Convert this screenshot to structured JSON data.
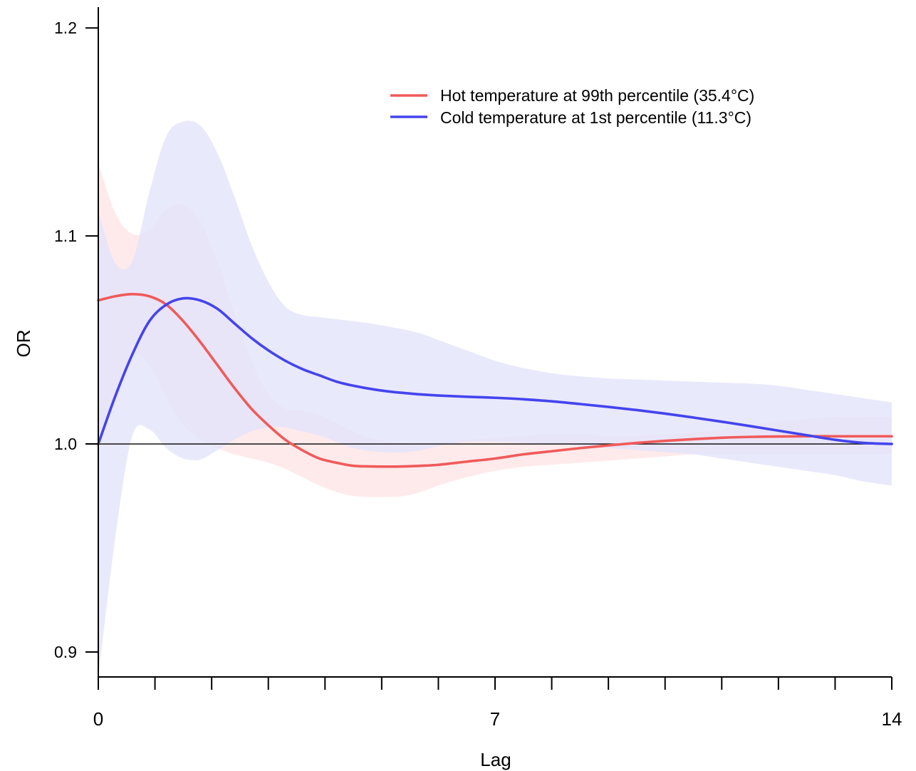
{
  "chart_data": {
    "type": "line",
    "title": "",
    "xlabel": "Lag",
    "ylabel": "OR",
    "xlim": [
      0,
      14
    ],
    "ylim": [
      0.888,
      1.21
    ],
    "x_ticks_major": [
      0,
      7,
      14
    ],
    "x_tick_labels": [
      "0",
      "7",
      "14"
    ],
    "x_ticks_minor": [
      1,
      2,
      3,
      4,
      5,
      6,
      8,
      9,
      10,
      11,
      12,
      13
    ],
    "y_ticks": [
      0.9,
      1.0,
      1.1,
      1.2
    ],
    "y_tick_labels": [
      "0.9",
      "1.0",
      "1.1",
      "1.2"
    ],
    "reference_line": 1.0,
    "grid": false,
    "legend_position": "top-right",
    "series": [
      {
        "name": "Hot temperature at 99th percentile (35.4°C)",
        "color": "#f05a5a",
        "band_color": "#ffe4e6",
        "x": [
          0,
          0.3,
          0.6,
          0.9,
          1.2,
          1.5,
          1.8,
          2.1,
          2.4,
          2.7,
          3.0,
          3.3,
          3.6,
          3.9,
          4.2,
          4.5,
          4.8,
          5.1,
          5.4,
          5.7,
          6.0,
          6.5,
          7.0,
          7.5,
          8.0,
          8.5,
          9.0,
          9.5,
          10.0,
          10.5,
          11.0,
          11.5,
          12.0,
          12.5,
          13.0,
          13.5,
          14.0
        ],
        "values": [
          1.069,
          1.071,
          1.072,
          1.071,
          1.067,
          1.059,
          1.049,
          1.038,
          1.027,
          1.017,
          1.009,
          1.002,
          0.997,
          0.993,
          0.991,
          0.9895,
          0.9892,
          0.9891,
          0.9892,
          0.9895,
          0.99,
          0.9915,
          0.993,
          0.995,
          0.9965,
          0.998,
          0.9993,
          1.0005,
          1.0015,
          1.0023,
          1.003,
          1.0034,
          1.0036,
          1.0037,
          1.0037,
          1.0037,
          1.0037
        ],
        "lower": [
          1.003,
          1.02,
          1.042,
          1.038,
          1.022,
          1.009,
          1.002,
          0.998,
          0.995,
          0.993,
          0.991,
          0.988,
          0.984,
          0.98,
          0.977,
          0.975,
          0.9745,
          0.9745,
          0.975,
          0.977,
          0.98,
          0.984,
          0.987,
          0.989,
          0.99,
          0.991,
          0.992,
          0.993,
          0.994,
          0.995,
          0.995,
          0.995,
          0.995,
          0.995,
          0.995,
          0.995,
          0.995
        ],
        "upper": [
          1.135,
          1.111,
          1.101,
          1.103,
          1.113,
          1.115,
          1.107,
          1.088,
          1.063,
          1.04,
          1.024,
          1.017,
          1.016,
          1.014,
          1.01,
          1.006,
          1.003,
          1.001,
          1.0005,
          1.0005,
          1.001,
          1.002,
          1.003,
          1.004,
          1.0045,
          1.0045,
          1.004,
          1.004,
          1.0045,
          1.0055,
          1.007,
          1.009,
          1.011,
          1.012,
          1.013,
          1.013,
          1.013
        ]
      },
      {
        "name": "Cold temperature at 1st percentile (11.3°C)",
        "color": "#4444ee",
        "band_color": "#e3e3fb",
        "x": [
          0,
          0.3,
          0.6,
          0.9,
          1.2,
          1.5,
          1.8,
          2.1,
          2.4,
          2.7,
          3.0,
          3.3,
          3.6,
          3.9,
          4.2,
          4.5,
          4.8,
          5.1,
          5.4,
          5.7,
          6.0,
          6.5,
          7.0,
          7.5,
          8.0,
          8.5,
          9.0,
          9.5,
          10.0,
          10.5,
          11.0,
          11.5,
          12.0,
          12.5,
          13.0,
          13.5,
          14.0
        ],
        "values": [
          1.0,
          1.023,
          1.043,
          1.059,
          1.067,
          1.07,
          1.069,
          1.065,
          1.058,
          1.051,
          1.045,
          1.04,
          1.036,
          1.033,
          1.03,
          1.028,
          1.0265,
          1.0253,
          1.0245,
          1.0238,
          1.0233,
          1.0227,
          1.0222,
          1.0215,
          1.0205,
          1.0192,
          1.0178,
          1.0163,
          1.0146,
          1.0127,
          1.0107,
          1.0086,
          1.0064,
          1.0042,
          1.002,
          1.0005,
          1.0
        ],
        "lower": [
          0.888,
          0.955,
          1.004,
          1.007,
          0.998,
          0.993,
          0.9925,
          0.997,
          1.002,
          1.006,
          1.008,
          1.008,
          1.006,
          1.004,
          1.001,
          0.998,
          0.9965,
          0.996,
          0.996,
          0.997,
          0.999,
          1.001,
          1.001,
          1.0005,
          1.0,
          0.999,
          0.998,
          0.997,
          0.996,
          0.995,
          0.993,
          0.991,
          0.989,
          0.987,
          0.985,
          0.982,
          0.98
        ],
        "upper": [
          1.112,
          1.087,
          1.088,
          1.121,
          1.148,
          1.155,
          1.153,
          1.14,
          1.119,
          1.096,
          1.078,
          1.066,
          1.062,
          1.061,
          1.06,
          1.059,
          1.058,
          1.0565,
          1.055,
          1.053,
          1.05,
          1.045,
          1.04,
          1.0365,
          1.034,
          1.0325,
          1.0315,
          1.031,
          1.0305,
          1.03,
          1.0295,
          1.029,
          1.028,
          1.026,
          1.024,
          1.022,
          1.02
        ]
      }
    ]
  }
}
